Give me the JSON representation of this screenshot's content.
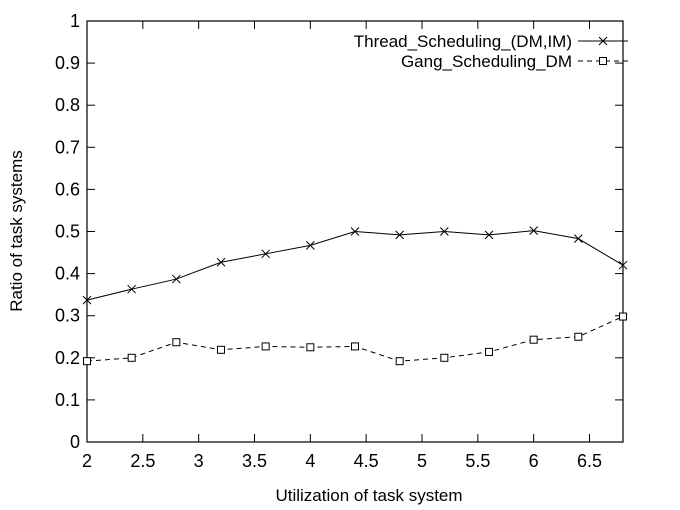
{
  "chart_data": {
    "type": "line",
    "title": "",
    "xlabel": "Utilization of task system",
    "ylabel": "Ratio of task systems",
    "xlim": [
      2,
      6.8
    ],
    "ylim": [
      0,
      1
    ],
    "xticks": [
      2,
      2.5,
      3,
      3.5,
      4,
      4.5,
      5,
      5.5,
      6,
      6.5
    ],
    "xtick_labels": [
      "2",
      "2.5",
      "3",
      "3.5",
      "4",
      "4.5",
      "5",
      "5.5",
      "6",
      "6.5"
    ],
    "yticks": [
      0,
      0.1,
      0.2,
      0.3,
      0.4,
      0.5,
      0.6,
      0.7,
      0.8,
      0.9,
      1
    ],
    "ytick_labels": [
      "0",
      "0.1",
      "0.2",
      "0.3",
      "0.4",
      "0.5",
      "0.6",
      "0.7",
      "0.8",
      "0.9",
      "1"
    ],
    "grid": false,
    "legend_position": "top-right",
    "x": [
      2,
      2.4,
      2.8,
      3.2,
      3.6,
      4,
      4.4,
      4.8,
      5.2,
      5.6,
      6,
      6.4,
      6.8
    ],
    "series": [
      {
        "name": "Thread_Scheduling_(DM,IM)",
        "marker": "cross",
        "line_style": "solid",
        "values": [
          0.337,
          0.363,
          0.387,
          0.427,
          0.447,
          0.467,
          0.5,
          0.492,
          0.5,
          0.492,
          0.502,
          0.483,
          0.42
        ]
      },
      {
        "name": "Gang_Scheduling_DM",
        "marker": "square",
        "line_style": "dashed",
        "values": [
          0.192,
          0.2,
          0.237,
          0.219,
          0.227,
          0.225,
          0.227,
          0.192,
          0.2,
          0.214,
          0.243,
          0.25,
          0.298
        ]
      }
    ],
    "colors": {
      "line": "#000000",
      "background": "#ffffff"
    }
  }
}
